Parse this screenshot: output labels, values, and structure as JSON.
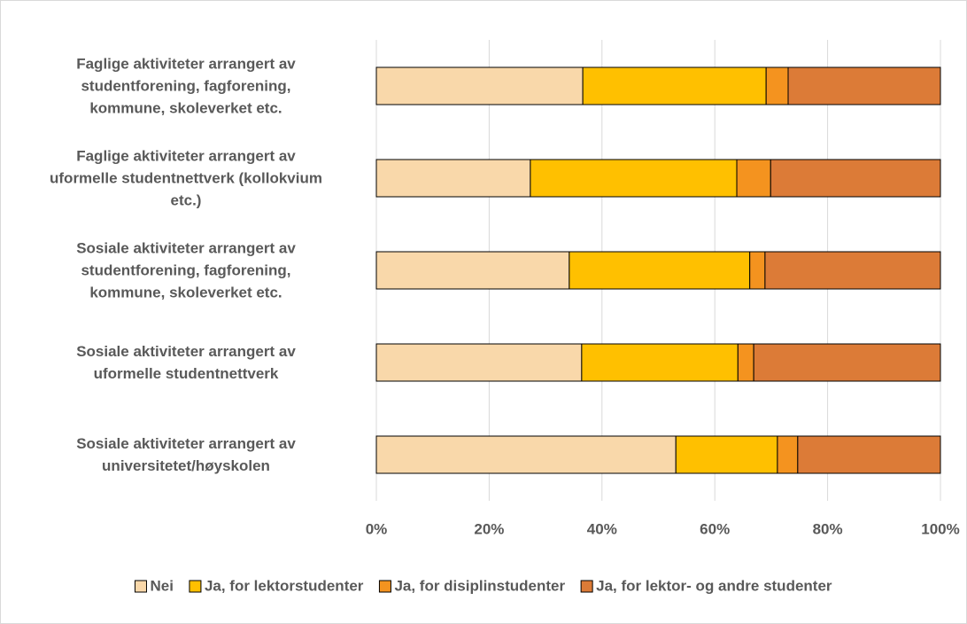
{
  "chart_data": {
    "type": "stacked-barh",
    "categories": [
      "Faglige aktiviteter arrangert av\nstudentforening, fagforening,\nkommune, skoleverket etc.",
      "Faglige aktiviteter arrangert av\nuformelle studentnettverk (kollokvium\netc.)",
      "Sosiale aktiviteter arrangert av\nstudentforening, fagforening,\nkommune, skoleverket etc.",
      "Sosiale aktiviteter arrangert av\nuformelle studentnettverk",
      "Sosiale aktiviteter arrangert av\nuniversitetet/høyskolen"
    ],
    "series": [
      {
        "name": "Nei",
        "color": "#f9d8aa",
        "values": [
          36.6,
          27.3,
          34.2,
          36.4,
          53.1
        ]
      },
      {
        "name": "Ja, for lektorstudenter",
        "color": "#ffc000",
        "values": [
          32.5,
          36.6,
          32.0,
          27.7,
          18.0
        ]
      },
      {
        "name": "Ja, for disiplinstudenter",
        "color": "#f4931f",
        "values": [
          3.9,
          6.0,
          2.7,
          2.8,
          3.6
        ]
      },
      {
        "name": "Ja, for lektor- og andre studenter",
        "color": "#dc7b37",
        "values": [
          27.0,
          30.1,
          31.1,
          33.1,
          25.3
        ]
      }
    ],
    "xlim": [
      0,
      100
    ],
    "xticks": [
      {
        "value": 0,
        "label": "0%"
      },
      {
        "value": 20,
        "label": "20%"
      },
      {
        "value": 40,
        "label": "40%"
      },
      {
        "value": 60,
        "label": "60%"
      },
      {
        "value": 80,
        "label": "80%"
      },
      {
        "value": 100,
        "label": "100%"
      }
    ],
    "grid": true,
    "legend": "bottom"
  }
}
